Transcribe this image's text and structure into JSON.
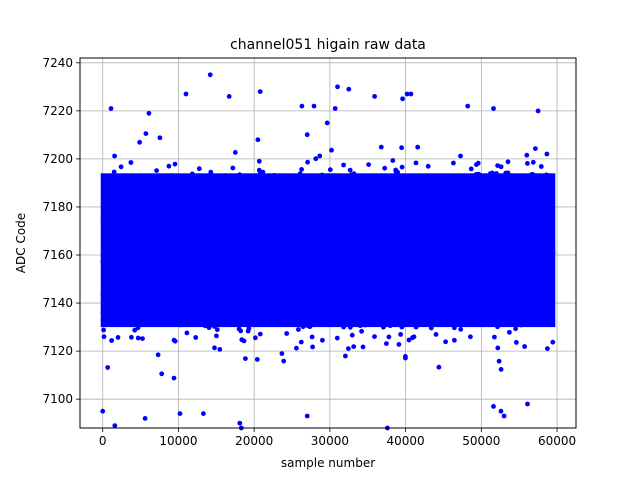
{
  "chart_data": {
    "type": "scatter",
    "title": "channel051 higain raw data",
    "xlabel": "sample number",
    "ylabel": "ADC Code",
    "xlim": [
      -3000,
      62500
    ],
    "ylim": [
      7088,
      7242
    ],
    "xticks": [
      0,
      10000,
      20000,
      30000,
      40000,
      50000,
      60000
    ],
    "xtick_labels": [
      "0",
      "10000",
      "20000",
      "30000",
      "40000",
      "50000",
      "60000"
    ],
    "yticks": [
      7100,
      7120,
      7140,
      7160,
      7180,
      7200,
      7220,
      7240
    ],
    "ytick_labels": [
      "7100",
      "7120",
      "7140",
      "7160",
      "7180",
      "7200",
      "7220",
      "7240"
    ],
    "grid": true,
    "marker_color": "#0000ff",
    "series": [
      {
        "x_range": [
          0,
          59500
        ],
        "dense_band": [
          7122,
          7202
        ],
        "outliers": [
          {
            "x": 14200,
            "y": 7235
          },
          {
            "x": 20800,
            "y": 7228
          },
          {
            "x": 31000,
            "y": 7230
          },
          {
            "x": 32500,
            "y": 7229
          },
          {
            "x": 11000,
            "y": 7227
          },
          {
            "x": 16700,
            "y": 7226
          },
          {
            "x": 40200,
            "y": 7227
          },
          {
            "x": 40700,
            "y": 7227
          },
          {
            "x": 39600,
            "y": 7225
          },
          {
            "x": 35900,
            "y": 7226
          },
          {
            "x": 1100,
            "y": 7221
          },
          {
            "x": 6100,
            "y": 7219
          },
          {
            "x": 26300,
            "y": 7222
          },
          {
            "x": 27900,
            "y": 7222
          },
          {
            "x": 30700,
            "y": 7221
          },
          {
            "x": 48200,
            "y": 7222
          },
          {
            "x": 51600,
            "y": 7221
          },
          {
            "x": 57500,
            "y": 7220
          },
          {
            "x": 0,
            "y": 7095
          },
          {
            "x": 1600,
            "y": 7089
          },
          {
            "x": 5600,
            "y": 7092
          },
          {
            "x": 10200,
            "y": 7094
          },
          {
            "x": 13300,
            "y": 7094
          },
          {
            "x": 18100,
            "y": 7090
          },
          {
            "x": 18300,
            "y": 7088
          },
          {
            "x": 27000,
            "y": 7093
          },
          {
            "x": 37600,
            "y": 7088
          },
          {
            "x": 51600,
            "y": 7097
          },
          {
            "x": 52600,
            "y": 7095
          },
          {
            "x": 53000,
            "y": 7093
          },
          {
            "x": 56100,
            "y": 7098
          }
        ]
      }
    ]
  }
}
